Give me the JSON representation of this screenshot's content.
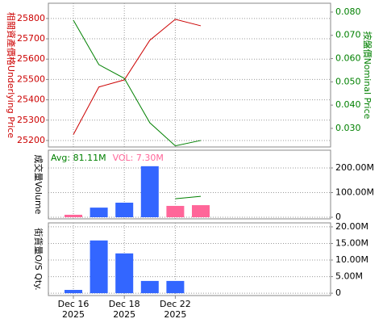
{
  "chart_data": [
    {
      "type": "line",
      "y_label": "相關資產價格Underlying Price",
      "y2_label": "按盤價Nominal Price",
      "categories": [
        "Dec 16\n2025",
        null,
        "Dec 18\n2025",
        null,
        "Dec 22\n2025",
        null
      ],
      "ylim": [
        25168,
        25875
      ],
      "yticks": [
        25200,
        25300,
        25400,
        25500,
        25600,
        25700,
        25800
      ],
      "y_color": "#cc0000",
      "y2lim": [
        0.022,
        0.0838
      ],
      "y2ticks": [
        {
          "value": 0.03,
          "label": "0.030"
        },
        {
          "value": 0.04,
          "label": "0.040"
        },
        {
          "value": 0.05,
          "label": "0.050"
        },
        {
          "value": 0.06,
          "label": "0.060"
        },
        {
          "value": 0.07,
          "label": "0.070"
        },
        {
          "value": 0.08,
          "label": "0.080"
        }
      ],
      "y2_color": "#008000",
      "grid": true,
      "series": [
        {
          "color": "#cc0000",
          "values": [
            25229,
            25463,
            25498,
            25693,
            25796,
            25764
          ]
        },
        {
          "color": "#008000",
          "axis": "y2",
          "values": [
            0.0765,
            0.0574,
            0.0515,
            0.0324,
            0.0225,
            0.0248
          ]
        }
      ]
    },
    {
      "type": "bar",
      "y_label": "成交量Volume",
      "annotations": [
        {
          "text": "Avg: 81.11M",
          "color": "#008000"
        },
        {
          "text": "VOL: 7.30M",
          "color": "#ff6699"
        }
      ],
      "y2lim": [
        -6.5,
        272
      ],
      "y2ticks": [
        {
          "value": 0,
          "label": "0"
        },
        {
          "value": 100,
          "label": "100.00M"
        },
        {
          "value": 200,
          "label": "200.00M"
        }
      ],
      "grid": true,
      "values": [
        10,
        39,
        59,
        207,
        46,
        49
      ],
      "colors": [
        "#ff6699",
        "#3366ff",
        "#3366ff",
        "#3366ff",
        "#ff6699",
        "#ff6699"
      ],
      "avg": {
        "color": "#008000",
        "values": [
          null,
          null,
          null,
          null,
          75,
          85
        ]
      }
    },
    {
      "type": "bar",
      "y_label": "街貨量O/S Qty.",
      "y2lim": [
        -0.7,
        21.2
      ],
      "y2ticks": [
        {
          "value": 0,
          "label": "0"
        },
        {
          "value": 5,
          "label": "5.00M"
        },
        {
          "value": 10,
          "label": "10.00M"
        },
        {
          "value": 15,
          "label": "15.00M"
        },
        {
          "value": 20,
          "label": "20.00M"
        }
      ],
      "grid": true,
      "values": [
        1.0,
        15.9,
        12.0,
        3.7,
        3.7,
        null
      ],
      "colors": [
        "#3366ff",
        "#3366ff",
        "#3366ff",
        "#3366ff",
        "#3366ff",
        "#3366ff"
      ]
    }
  ]
}
